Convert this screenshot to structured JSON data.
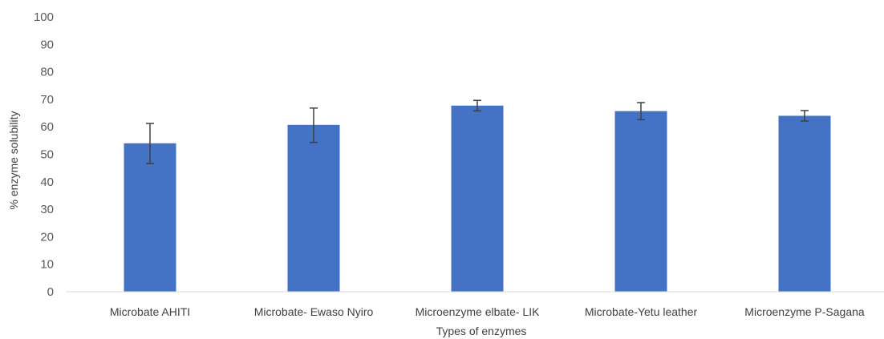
{
  "chart_data": {
    "type": "bar",
    "title": "",
    "xlabel": "Types of enzymes",
    "ylabel": "% enzyme solubility",
    "ylim": [
      0,
      100
    ],
    "yticks": [
      0,
      10,
      20,
      30,
      40,
      50,
      60,
      70,
      80,
      90,
      100
    ],
    "grid": false,
    "categories": [
      "Microbate AHITI",
      "Microbate- Ewaso Nyiro",
      "Microenzyme elbate- LIK",
      "Microbate-Yetu leather",
      "Microenzyme P-Sagana"
    ],
    "values": [
      54,
      60.7,
      67.7,
      65.7,
      64
    ],
    "error_low": [
      46.6,
      54.3,
      65.8,
      62.6,
      62.1
    ],
    "error_high": [
      61.2,
      66.8,
      69.6,
      68.8,
      65.9
    ],
    "bar_color": "#4472C4",
    "error_color": "#404040"
  }
}
